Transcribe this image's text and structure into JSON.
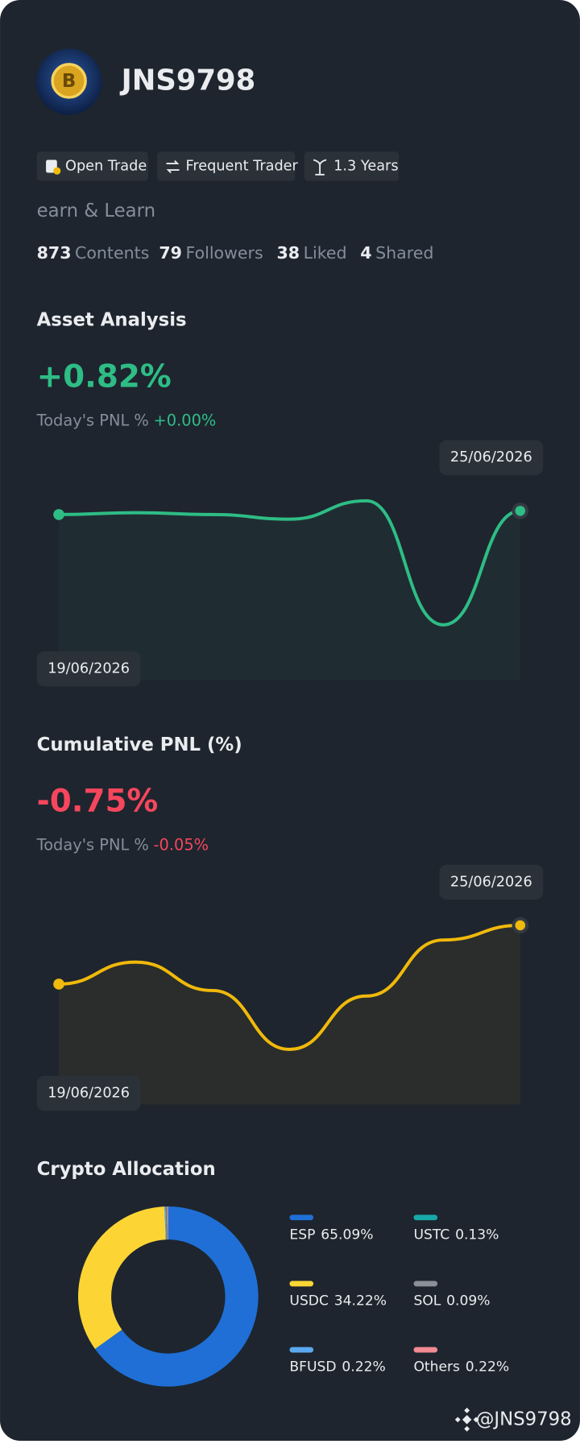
{
  "profile": {
    "name": "JNS9798",
    "badges": [
      "Open Trade",
      "Frequent Trader",
      "1.3 Years"
    ],
    "bio": "earn & Learn",
    "stats": [
      {
        "value": 873,
        "label": "Contents"
      },
      {
        "value": 79,
        "label": "Followers"
      },
      {
        "value": 38,
        "label": "Liked"
      },
      {
        "value": 4,
        "label": "Shared"
      }
    ]
  },
  "chart_data": [
    {
      "type": "line",
      "title": "Asset Analysis",
      "headline": "+0.82%",
      "pnl_label": "Today's PNL %",
      "pnl_value": "+0.00%",
      "categories": [
        "19/06/2026",
        null,
        null,
        null,
        null,
        null,
        "25/06/2026"
      ],
      "series": [
        {
          "color": "#2ebd85",
          "values": [
            1.4,
            1.42,
            1.4,
            1.35,
            1.55,
            0.2,
            1.44
          ]
        }
      ]
    },
    {
      "type": "line",
      "title": "Cumulative PNL (%)",
      "headline": "-0.75%",
      "pnl_label": "Today's PNL %",
      "pnl_value": "-0.05%",
      "categories": [
        "19/06/2026",
        null,
        null,
        null,
        null,
        null,
        "25/06/2026"
      ],
      "series": [
        {
          "color": "#f0b90b",
          "values": [
            0.9,
            1.14,
            0.83,
            0.19,
            0.77,
            1.38,
            1.54
          ]
        }
      ]
    },
    {
      "type": "pie",
      "title": "Crypto Allocation",
      "categories": [
        "ESP",
        "USDC",
        "BFUSD",
        "USTC",
        "SOL",
        "Others"
      ],
      "values": [
        65.09,
        34.22,
        0.22,
        0.13,
        0.09,
        0.22
      ],
      "value_labels": [
        "65.09%",
        "34.22%",
        "0.22%",
        "0.13%",
        "0.09%",
        "0.22%"
      ],
      "colors": [
        "#1f6fd6",
        "#fcd535",
        "#5aa9f0",
        "#17a9a9",
        "#8a8f98",
        "#f08a93"
      ]
    }
  ],
  "watermark": "@JNS9798"
}
